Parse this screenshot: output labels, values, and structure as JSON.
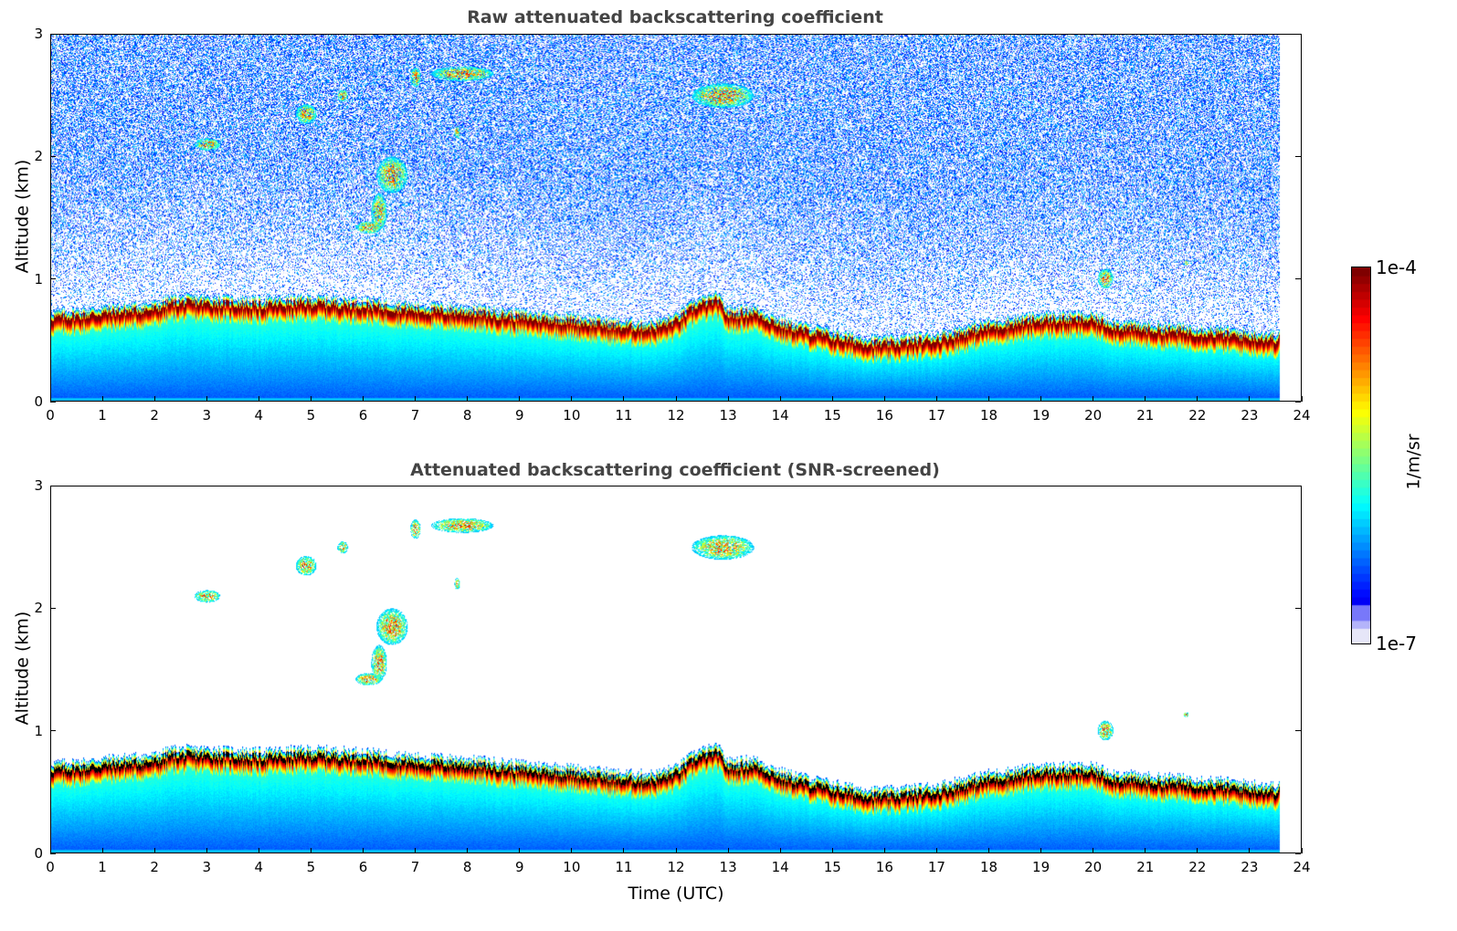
{
  "chart_data": [
    {
      "type": "heatmap",
      "title": "Raw attenuated backscattering coefficient",
      "xlabel": "",
      "ylabel": "Altitude (km)",
      "xlim": [
        0,
        24
      ],
      "ylim": [
        0,
        3
      ],
      "x_ticks": [
        "0",
        "1",
        "2",
        "3",
        "4",
        "5",
        "6",
        "7",
        "8",
        "9",
        "10",
        "11",
        "12",
        "13",
        "14",
        "15",
        "16",
        "17",
        "18",
        "19",
        "20",
        "21",
        "22",
        "23",
        "24"
      ],
      "y_ticks": [
        "0",
        "1",
        "2",
        "3"
      ],
      "data_end_time": 23.6,
      "noise": "high",
      "screened": false
    },
    {
      "type": "heatmap",
      "title": "Attenuated backscattering coefficient (SNR-screened)",
      "xlabel": "Time (UTC)",
      "ylabel": "Altitude (km)",
      "xlim": [
        0,
        24
      ],
      "ylim": [
        0,
        3
      ],
      "x_ticks": [
        "0",
        "1",
        "2",
        "3",
        "4",
        "5",
        "6",
        "7",
        "8",
        "9",
        "10",
        "11",
        "12",
        "13",
        "14",
        "15",
        "16",
        "17",
        "18",
        "19",
        "20",
        "21",
        "22",
        "23",
        "24"
      ],
      "y_ticks": [
        "0",
        "1",
        "2",
        "3"
      ],
      "data_end_time": 23.6,
      "noise": "none",
      "screened": true
    }
  ],
  "layer_top_km": [
    [
      0,
      0.68
    ],
    [
      0.7,
      0.7
    ],
    [
      1,
      0.72
    ],
    [
      2,
      0.75
    ],
    [
      2.3,
      0.8
    ],
    [
      3,
      0.8
    ],
    [
      4,
      0.78
    ],
    [
      5,
      0.8
    ],
    [
      6,
      0.78
    ],
    [
      7,
      0.74
    ],
    [
      8,
      0.72
    ],
    [
      9,
      0.68
    ],
    [
      10,
      0.65
    ],
    [
      11,
      0.6
    ],
    [
      11.6,
      0.6
    ],
    [
      12,
      0.65
    ],
    [
      12.4,
      0.78
    ],
    [
      12.8,
      0.82
    ],
    [
      13,
      0.7
    ],
    [
      13.5,
      0.72
    ],
    [
      14,
      0.62
    ],
    [
      15,
      0.52
    ],
    [
      15.5,
      0.48
    ],
    [
      16,
      0.46
    ],
    [
      16.5,
      0.48
    ],
    [
      17,
      0.5
    ],
    [
      17.5,
      0.55
    ],
    [
      18,
      0.6
    ],
    [
      19,
      0.66
    ],
    [
      20,
      0.66
    ],
    [
      20.5,
      0.6
    ],
    [
      21,
      0.58
    ],
    [
      22,
      0.56
    ],
    [
      23,
      0.52
    ],
    [
      23.6,
      0.5
    ]
  ],
  "clouds": [
    {
      "t": 3.0,
      "z": 2.1,
      "dt": 0.25,
      "dz": 0.05
    },
    {
      "t": 4.9,
      "z": 2.35,
      "dt": 0.2,
      "dz": 0.08
    },
    {
      "t": 5.6,
      "z": 2.5,
      "dt": 0.1,
      "dz": 0.05
    },
    {
      "t": 6.1,
      "z": 1.42,
      "dt": 0.25,
      "dz": 0.05
    },
    {
      "t": 6.3,
      "z": 1.55,
      "dt": 0.15,
      "dz": 0.15
    },
    {
      "t": 6.55,
      "z": 1.85,
      "dt": 0.3,
      "dz": 0.15
    },
    {
      "t": 7.0,
      "z": 2.65,
      "dt": 0.1,
      "dz": 0.08
    },
    {
      "t": 7.9,
      "z": 2.68,
      "dt": 0.6,
      "dz": 0.06
    },
    {
      "t": 7.8,
      "z": 2.2,
      "dt": 0.05,
      "dz": 0.05
    },
    {
      "t": 12.9,
      "z": 2.5,
      "dt": 0.6,
      "dz": 0.1
    },
    {
      "t": 20.25,
      "z": 1.0,
      "dt": 0.15,
      "dz": 0.08
    },
    {
      "t": 21.8,
      "z": 1.13,
      "dt": 0.05,
      "dz": 0.02
    }
  ],
  "colorbar": {
    "max_label": "1e-4",
    "min_label": "1e-7",
    "units": "1/m/sr",
    "scale": "log",
    "colormap": "jet"
  }
}
